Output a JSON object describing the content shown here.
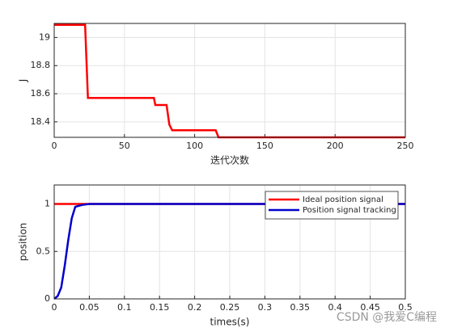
{
  "chart_data": [
    {
      "type": "line",
      "xlabel": "迭代次数",
      "ylabel": "J",
      "x": [
        0,
        22,
        24,
        71,
        72,
        80,
        82,
        84,
        115,
        117,
        250
      ],
      "series": [
        {
          "color": "#ff0000",
          "values": [
            19.09,
            19.09,
            18.57,
            18.57,
            18.52,
            18.52,
            18.38,
            18.34,
            18.34,
            18.29,
            18.29
          ]
        }
      ],
      "xlim": [
        0,
        250
      ],
      "xticks": [
        0,
        50,
        100,
        150,
        200,
        250
      ],
      "ylim": [
        18.29,
        19.1
      ],
      "yticks": [
        18.4,
        18.6,
        18.8,
        19
      ],
      "grid": true
    },
    {
      "type": "line",
      "xlabel": "times(s)",
      "ylabel": "position",
      "x": [
        0,
        0.005,
        0.01,
        0.015,
        0.02,
        0.025,
        0.03,
        0.035,
        0.04,
        0.05,
        0.5
      ],
      "series": [
        {
          "name": "Ideal position signal",
          "color": "#ff0000",
          "values": [
            1,
            1,
            1,
            1,
            1,
            1,
            1,
            1,
            1,
            1,
            1
          ]
        },
        {
          "name": "Position signal tracking",
          "color": "#0000cc",
          "values": [
            0,
            0.03,
            0.12,
            0.35,
            0.62,
            0.85,
            0.97,
            0.98,
            0.99,
            1,
            1
          ]
        }
      ],
      "xlim": [
        0,
        0.5
      ],
      "xticks": [
        0,
        0.05,
        0.1,
        0.15,
        0.2,
        0.25,
        0.3,
        0.35,
        0.4,
        0.45,
        0.5
      ],
      "ylim": [
        0,
        1.2
      ],
      "yticks": [
        0,
        0.5,
        1
      ],
      "grid": true,
      "legend": "upper right"
    }
  ],
  "watermark": "CSDN @我爱C编程"
}
